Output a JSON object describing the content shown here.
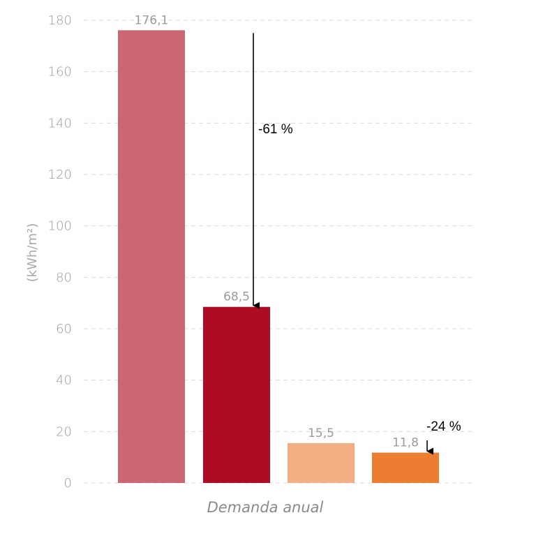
{
  "chart_data": {
    "type": "bar",
    "categories": [
      "",
      "",
      "",
      ""
    ],
    "values": [
      176.1,
      68.5,
      15.5,
      11.8
    ],
    "value_labels": [
      "176,1",
      "68,5",
      "15,5",
      "11,8"
    ],
    "colors": [
      "#cc6673",
      "#ad0d24",
      "#f4ae83",
      "#ed7d31"
    ],
    "ylabel": "(kWh/m²)",
    "xlabel": "Demanda anual",
    "ylim": [
      0,
      180
    ],
    "yticks": [
      0,
      20,
      40,
      60,
      80,
      100,
      120,
      140,
      160,
      180
    ],
    "grid": true,
    "annotations": [
      {
        "text": "-61 %",
        "from_bar": 0,
        "to_bar": 1
      },
      {
        "text": "-24 %",
        "from_bar": 2,
        "to_bar": 3
      }
    ]
  }
}
